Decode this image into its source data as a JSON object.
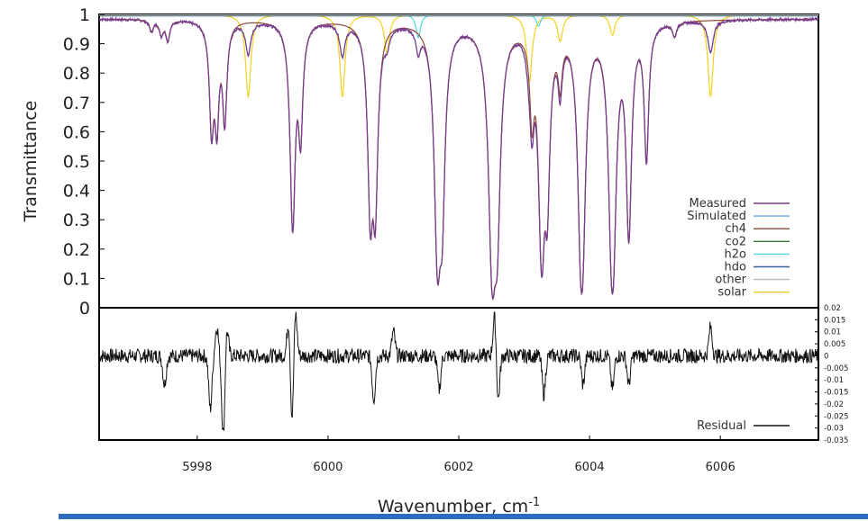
{
  "chart_data": [
    {
      "type": "line",
      "ylabel": "Transmittance",
      "ylim": [
        0,
        1
      ],
      "xlim": [
        5996.5,
        6007.5
      ],
      "yticks": [
        "0",
        "0.1",
        "0.2",
        "0.3",
        "0.4",
        "0.5",
        "0.6",
        "0.7",
        "0.8",
        "0.9",
        "1"
      ],
      "legend_position": "bottom-right",
      "grid": false,
      "series": [
        {
          "name": "Measured",
          "color": "#7a3a8c"
        },
        {
          "name": "Simulated",
          "color": "#6fa8dc"
        },
        {
          "name": "ch4",
          "color": "#8b4a3a"
        },
        {
          "name": "co2",
          "color": "#3a7a3a"
        },
        {
          "name": "h2o",
          "color": "#55d6e0"
        },
        {
          "name": "hdo",
          "color": "#3a5fa0"
        },
        {
          "name": "other",
          "color": "#bbbbbb"
        },
        {
          "name": "solar",
          "color": "#f5d020"
        }
      ],
      "ch4_lines": [
        {
          "x": 5997.3,
          "t": 0.96
        },
        {
          "x": 5997.45,
          "t": 0.95
        },
        {
          "x": 5997.55,
          "t": 0.93
        },
        {
          "x": 5998.22,
          "t": 0.62
        },
        {
          "x": 5998.3,
          "t": 0.64
        },
        {
          "x": 5998.42,
          "t": 0.65
        },
        {
          "x": 5999.46,
          "t": 0.27
        },
        {
          "x": 5999.58,
          "t": 0.6
        },
        {
          "x": 6000.65,
          "t": 0.3
        },
        {
          "x": 6000.72,
          "t": 0.32
        },
        {
          "x": 6001.68,
          "t": 0.11
        },
        {
          "x": 6001.74,
          "t": 0.28
        },
        {
          "x": 6002.52,
          "t": 0.05
        },
        {
          "x": 6002.58,
          "t": 0.2
        },
        {
          "x": 6003.12,
          "t": 0.69
        },
        {
          "x": 6003.27,
          "t": 0.13
        },
        {
          "x": 6003.35,
          "t": 0.35
        },
        {
          "x": 6003.55,
          "t": 0.82
        },
        {
          "x": 6003.88,
          "t": 0.05
        },
        {
          "x": 6004.35,
          "t": 0.05
        },
        {
          "x": 6004.6,
          "t": 0.24
        },
        {
          "x": 6004.87,
          "t": 0.52
        },
        {
          "x": 6005.3,
          "t": 0.95
        }
      ],
      "solar_lines": [
        {
          "x": 5998.78,
          "t": 0.72
        },
        {
          "x": 6000.22,
          "t": 0.72
        },
        {
          "x": 6000.9,
          "t": 0.87
        },
        {
          "x": 6003.08,
          "t": 0.77
        },
        {
          "x": 6003.55,
          "t": 0.91
        },
        {
          "x": 6004.35,
          "t": 0.93
        },
        {
          "x": 6005.85,
          "t": 0.72
        }
      ],
      "h2o_lines": [
        {
          "x": 6001.38,
          "t": 0.92
        },
        {
          "x": 6003.22,
          "t": 0.96
        }
      ]
    },
    {
      "type": "line",
      "xlabel": "Wavenumber, cm",
      "xlabel_sup": "-1",
      "xlim": [
        5996.5,
        6007.5
      ],
      "ylim": [
        -0.035,
        0.02
      ],
      "xticks": [
        5998,
        6000,
        6002,
        6004,
        6006
      ],
      "yticks": [
        "0.02",
        "0.015",
        "0.01",
        "0.005",
        "0",
        "-0.005",
        "-0.01",
        "-0.015",
        "-0.02",
        "-0.025",
        "-0.03",
        "-0.035"
      ],
      "legend_position": "bottom-right",
      "series": [
        {
          "name": "Residual",
          "color": "#111111"
        }
      ],
      "residual_spikes": [
        {
          "x": 5998.2,
          "v": -0.022
        },
        {
          "x": 5998.3,
          "v": 0.012
        },
        {
          "x": 5998.4,
          "v": -0.034
        },
        {
          "x": 5998.45,
          "v": 0.013
        },
        {
          "x": 5999.45,
          "v": -0.03
        },
        {
          "x": 5999.5,
          "v": 0.02
        },
        {
          "x": 5999.4,
          "v": 0.016
        },
        {
          "x": 6000.7,
          "v": -0.018
        },
        {
          "x": 6001.7,
          "v": -0.014
        },
        {
          "x": 6002.55,
          "v": 0.018
        },
        {
          "x": 6002.6,
          "v": -0.02
        },
        {
          "x": 6003.3,
          "v": -0.016
        },
        {
          "x": 6003.9,
          "v": -0.012
        },
        {
          "x": 6004.35,
          "v": -0.014
        },
        {
          "x": 6004.6,
          "v": -0.012
        },
        {
          "x": 6005.85,
          "v": 0.012
        },
        {
          "x": 5997.5,
          "v": -0.012
        },
        {
          "x": 6001.0,
          "v": 0.01
        }
      ]
    }
  ]
}
